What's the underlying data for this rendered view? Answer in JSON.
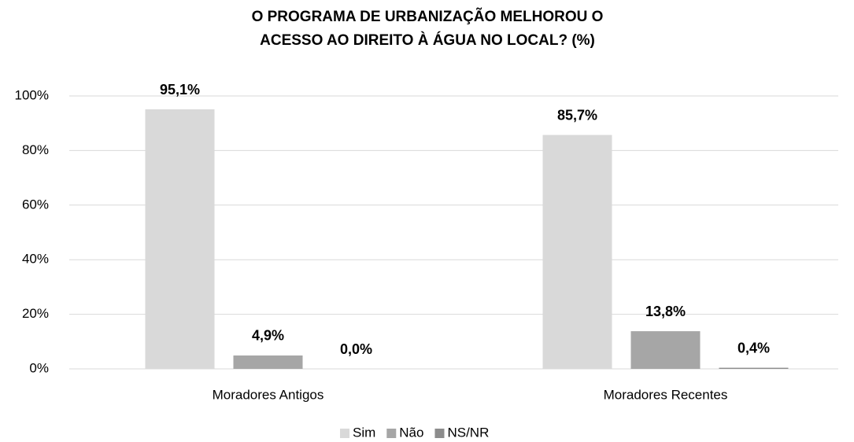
{
  "chart_data": {
    "type": "bar",
    "title": [
      "O PROGRAMA DE URBANIZAÇÃO MELHOROU O",
      "ACESSO AO DIREITO À ÁGUA NO LOCAL? (%)"
    ],
    "categories": [
      "Moradores Antigos",
      "Moradores Recentes"
    ],
    "series": [
      {
        "name": "Sim",
        "color": "#d9d9d9",
        "values": [
          95.1,
          85.7
        ],
        "value_labels": [
          "95,1%",
          "85,7%"
        ]
      },
      {
        "name": "Não",
        "color": "#a6a6a6",
        "values": [
          4.9,
          13.8
        ],
        "value_labels": [
          "4,9%",
          "13,8%"
        ]
      },
      {
        "name": "NS/NR",
        "color": "#8c8c8c",
        "values": [
          0.0,
          0.4
        ],
        "value_labels": [
          "0,0%",
          "0,4%"
        ]
      }
    ],
    "ylim": [
      0,
      100
    ],
    "yticks": [
      {
        "value": 0,
        "label": "0%"
      },
      {
        "value": 20,
        "label": "20%"
      },
      {
        "value": 40,
        "label": "40%"
      },
      {
        "value": 60,
        "label": "60%"
      },
      {
        "value": 80,
        "label": "80%"
      },
      {
        "value": 100,
        "label": "100%"
      }
    ],
    "grid": true,
    "legend": "bottom"
  }
}
